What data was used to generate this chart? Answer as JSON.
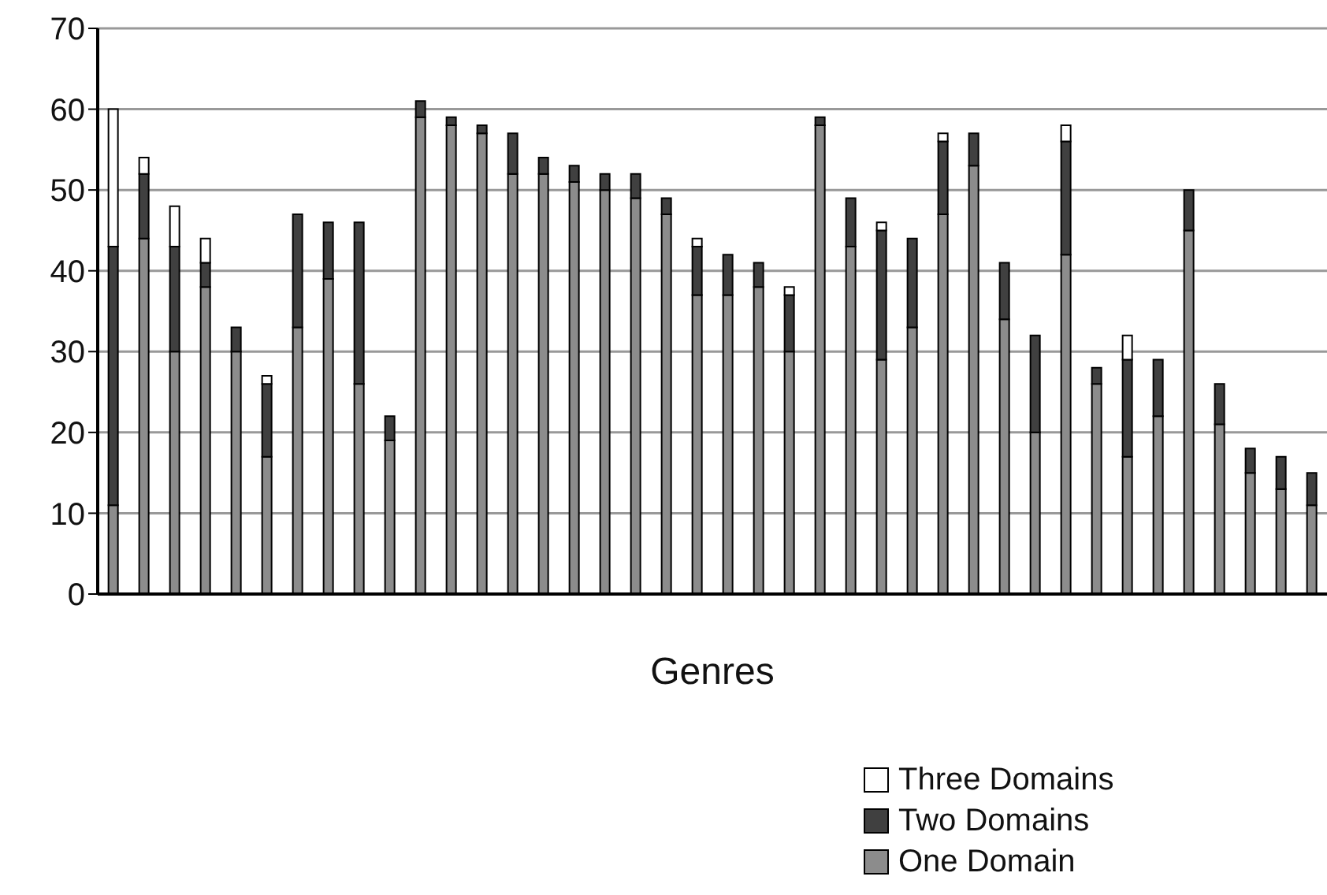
{
  "chart_data": {
    "type": "bar",
    "xlabel": "Genres",
    "stacked": true,
    "categories": [
      null,
      null,
      null,
      null,
      null,
      null,
      null,
      null,
      null,
      null,
      null,
      null,
      null,
      null,
      null,
      null,
      null,
      null,
      null,
      null,
      null,
      null,
      null,
      null,
      null,
      null,
      null,
      null,
      null,
      null,
      null,
      null,
      null,
      null,
      null,
      null,
      null,
      null,
      null,
      null
    ],
    "series": [
      {
        "name": "One Domain",
        "color": "#8c8c8c",
        "values": [
          11,
          44,
          30,
          38,
          30,
          17,
          33,
          39,
          26,
          19,
          59,
          58,
          57,
          52,
          52,
          51,
          50,
          49,
          47,
          37,
          37,
          38,
          30,
          58,
          43,
          29,
          33,
          47,
          53,
          34,
          20,
          42,
          26,
          17,
          22,
          45,
          21,
          15,
          13,
          11
        ]
      },
      {
        "name": "Two Domains",
        "color": "#404040",
        "values": [
          32,
          8,
          13,
          3,
          3,
          9,
          14,
          7,
          20,
          3,
          2,
          1,
          1,
          5,
          2,
          2,
          2,
          3,
          2,
          6,
          5,
          3,
          7,
          1,
          6,
          16,
          11,
          9,
          4,
          7,
          12,
          14,
          2,
          12,
          7,
          5,
          5,
          3,
          4,
          4
        ]
      },
      {
        "name": "Three Domains",
        "color": "#ffffff",
        "values": [
          17,
          2,
          5,
          3,
          0,
          1,
          0,
          0,
          0,
          0,
          0,
          0,
          0,
          0,
          0,
          0,
          0,
          0,
          0,
          1,
          0,
          0,
          1,
          0,
          0,
          1,
          0,
          1,
          0,
          0,
          0,
          2,
          0,
          3,
          0,
          0,
          0,
          0,
          0,
          0
        ]
      }
    ],
    "ylim": [
      0,
      70
    ],
    "yticks": [
      0,
      10,
      20,
      30,
      40,
      50,
      60,
      70
    ],
    "grid": "y",
    "legend": "bottom right",
    "tick_labels": "y"
  }
}
